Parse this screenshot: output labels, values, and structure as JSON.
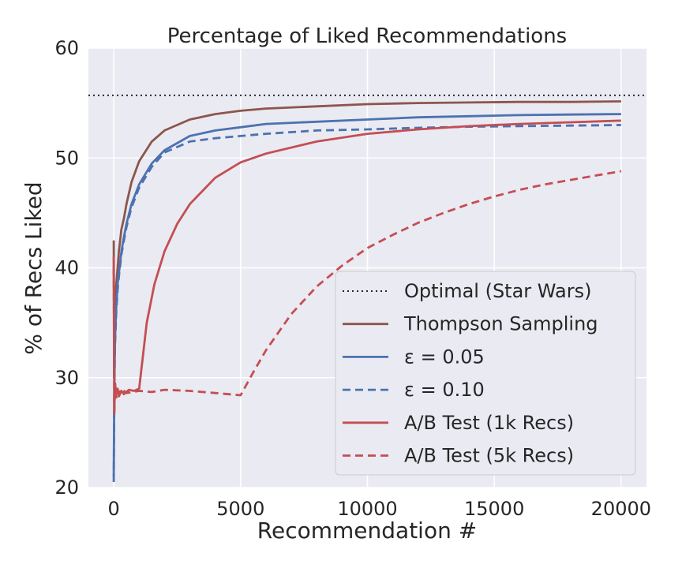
{
  "chart_data": {
    "type": "line",
    "title": "Percentage of Liked Recommendations",
    "xlabel": "Recommendation #",
    "ylabel": "% of Recs Liked",
    "xlim": [
      -1000,
      21000
    ],
    "ylim": [
      20,
      60
    ],
    "xticks": [
      0,
      5000,
      10000,
      15000,
      20000
    ],
    "yticks": [
      20,
      30,
      40,
      50,
      60
    ],
    "grid": true,
    "legend_position": "lower-right",
    "colors": {
      "background": "#EAEAF2",
      "grid": "#FFFFFF",
      "optimal": "#262626",
      "thompson": "#8C564B",
      "eps": "#4C72B0",
      "ab": "#C44E52"
    },
    "series": [
      {
        "name": "Optimal (Star Wars)",
        "style": "dotted",
        "color": "#262626",
        "x": [
          -1000,
          21000
        ],
        "y": [
          55.7,
          55.7
        ]
      },
      {
        "name": "Thompson Sampling",
        "style": "solid",
        "color": "#8C564B",
        "x": [
          0,
          10,
          30,
          60,
          100,
          150,
          200,
          300,
          400,
          500,
          700,
          1000,
          1500,
          2000,
          3000,
          4000,
          5000,
          6000,
          8000,
          10000,
          12000,
          14000,
          16000,
          18000,
          20000
        ],
        "y": [
          42.5,
          30.0,
          35.0,
          37.5,
          38.5,
          40.0,
          41.5,
          43.5,
          44.5,
          45.8,
          47.8,
          49.7,
          51.5,
          52.5,
          53.5,
          54.0,
          54.3,
          54.5,
          54.7,
          54.9,
          55.0,
          55.05,
          55.1,
          55.1,
          55.15
        ]
      },
      {
        "name": "ε = 0.05",
        "style": "solid",
        "color": "#4C72B0",
        "x": [
          0,
          20,
          50,
          100,
          150,
          200,
          300,
          400,
          500,
          700,
          1000,
          1500,
          2000,
          3000,
          4000,
          5000,
          6000,
          8000,
          10000,
          12000,
          14000,
          16000,
          18000,
          20000
        ],
        "y": [
          21.0,
          29.0,
          33.5,
          36.5,
          38.5,
          39.5,
          41.5,
          42.8,
          44.0,
          45.8,
          47.6,
          49.5,
          50.7,
          52.0,
          52.5,
          52.8,
          53.1,
          53.3,
          53.5,
          53.7,
          53.8,
          53.9,
          53.95,
          54.0
        ]
      },
      {
        "name": "ε = 0.10",
        "style": "dashed",
        "color": "#4C72B0",
        "x": [
          0,
          20,
          50,
          100,
          150,
          200,
          300,
          400,
          500,
          700,
          1000,
          1500,
          2000,
          3000,
          4000,
          5000,
          6000,
          8000,
          10000,
          12000,
          14000,
          16000,
          18000,
          20000
        ],
        "y": [
          20.5,
          28.5,
          33.0,
          36.0,
          38.0,
          39.2,
          41.2,
          42.5,
          43.7,
          45.5,
          47.3,
          49.2,
          50.5,
          51.5,
          51.8,
          52.0,
          52.2,
          52.5,
          52.6,
          52.75,
          52.85,
          52.9,
          52.95,
          53.0
        ]
      },
      {
        "name": "A/B Test (1k Recs)",
        "style": "solid",
        "color": "#C44E52",
        "x": [
          0,
          20,
          50,
          100,
          150,
          200,
          300,
          400,
          600,
          800,
          1000,
          1100,
          1300,
          1600,
          2000,
          2500,
          3000,
          4000,
          5000,
          6000,
          8000,
          10000,
          12000,
          14000,
          16000,
          18000,
          20000
        ],
        "y": [
          41.0,
          27.0,
          29.5,
          28.5,
          29.0,
          28.3,
          28.8,
          28.5,
          28.9,
          28.8,
          29.0,
          31.0,
          35.0,
          38.5,
          41.5,
          44.0,
          45.8,
          48.2,
          49.6,
          50.4,
          51.5,
          52.2,
          52.6,
          52.9,
          53.1,
          53.25,
          53.4
        ]
      },
      {
        "name": "A/B Test (5k Recs)",
        "style": "dashed",
        "color": "#C44E52",
        "x": [
          0,
          20,
          50,
          100,
          150,
          200,
          300,
          500,
          1000,
          1500,
          2000,
          3000,
          4000,
          5000,
          5500,
          6000,
          7000,
          8000,
          9000,
          10000,
          11000,
          12000,
          13000,
          14000,
          15000,
          16000,
          17000,
          18000,
          19000,
          20000
        ],
        "y": [
          40.0,
          26.5,
          29.5,
          28.2,
          28.8,
          28.5,
          29.0,
          28.6,
          28.8,
          28.7,
          28.9,
          28.8,
          28.6,
          28.4,
          30.5,
          32.5,
          35.8,
          38.3,
          40.2,
          41.8,
          43.0,
          44.1,
          45.0,
          45.8,
          46.5,
          47.1,
          47.6,
          48.0,
          48.4,
          48.8
        ]
      }
    ]
  }
}
